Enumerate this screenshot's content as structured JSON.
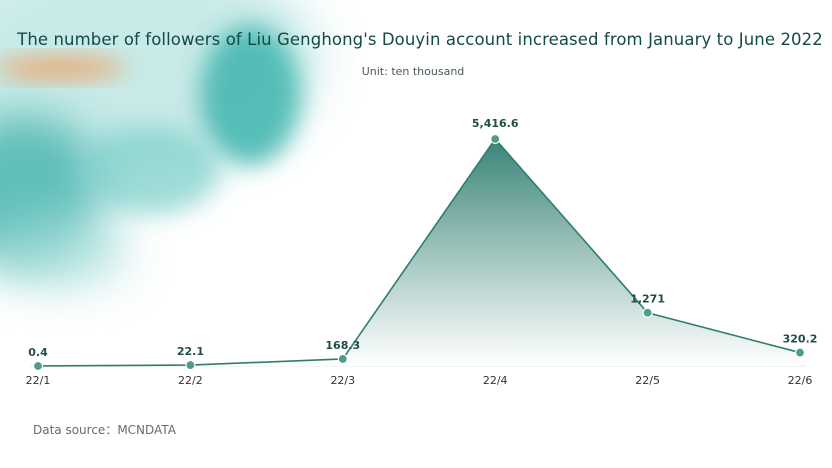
{
  "title": "The number of followers of Liu Genghong's Douyin account increased from January to June 2022",
  "unit": "Unit: ten thousand",
  "source": "Data source：MCNDATA",
  "colors": {
    "line": "#2e7d70",
    "area_top": "#2f7e70",
    "area_bottom": "#ffffff",
    "marker": "#4f9b8d",
    "label": "#1f4d48",
    "accent_teal": "#34b3ae",
    "accent_orange": "#f29a55"
  },
  "chart_data": {
    "type": "area",
    "title": "The number of followers of Liu Genghong's Douyin account increased from January to June 2022",
    "subtitle": "Unit: ten thousand",
    "categories": [
      "22/1",
      "22/2",
      "22/3",
      "22/4",
      "22/5",
      "22/6"
    ],
    "values": [
      0.4,
      22.1,
      168.3,
      5416.6,
      1271,
      320.2
    ],
    "value_labels": [
      "0.4",
      "22.1",
      "168.3",
      "5,416.6",
      "1,271",
      "320.2"
    ],
    "ylim": [
      0,
      5416.6
    ],
    "grid": false,
    "legend": "none"
  }
}
